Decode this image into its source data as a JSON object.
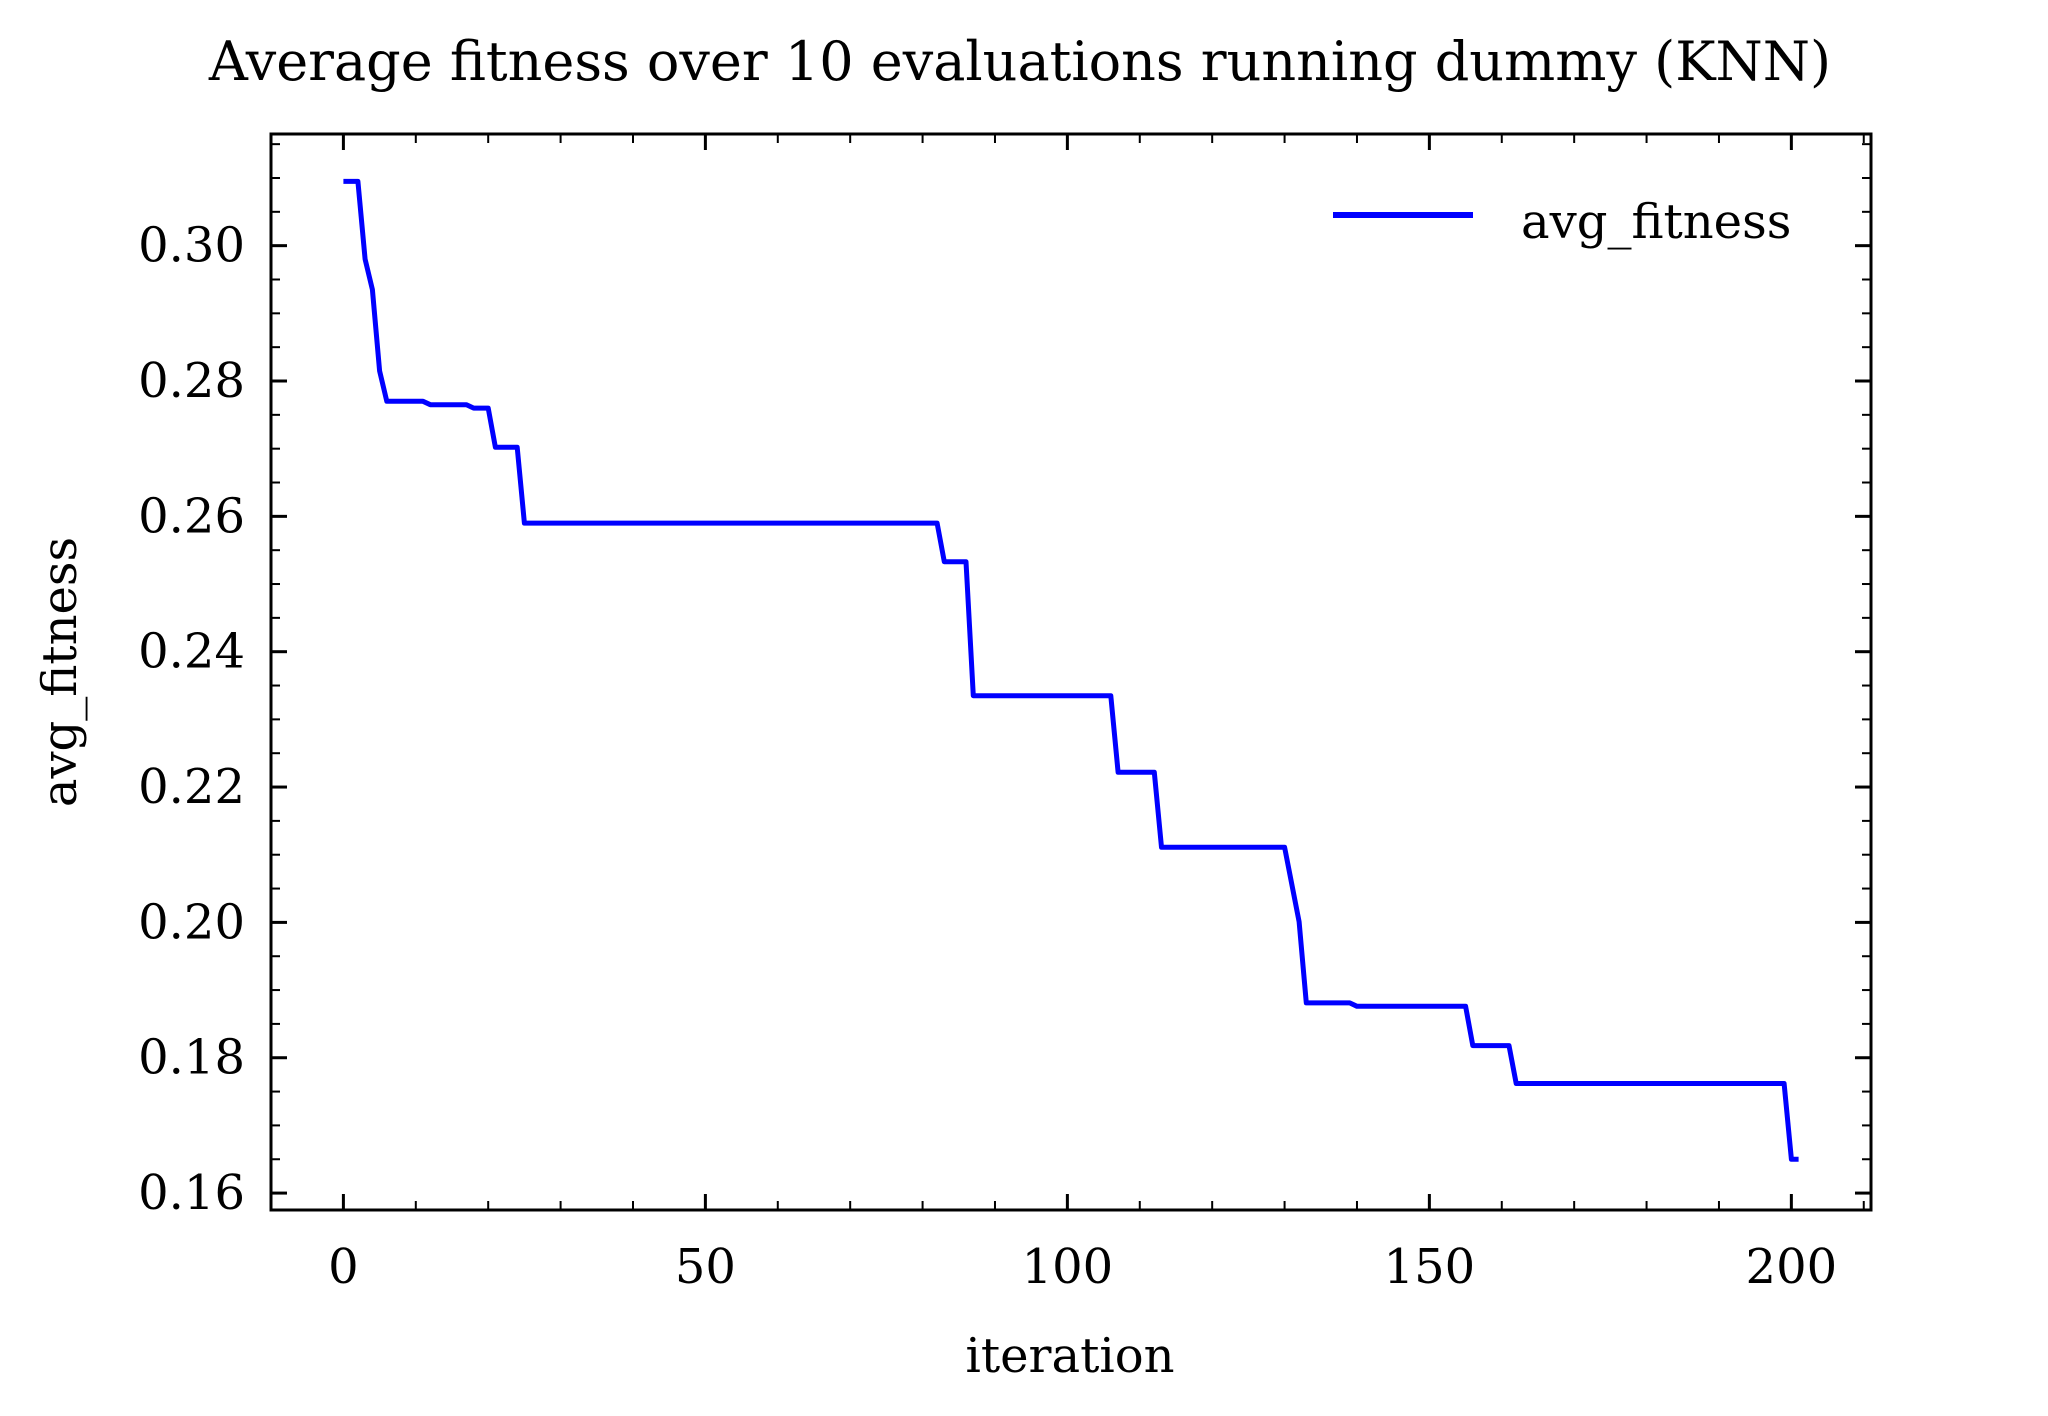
{
  "chart_data": {
    "type": "line",
    "title": "Average fitness over 10 evaluations running dummy (KNN)",
    "xlabel": "iteration",
    "ylabel": "avg_fitness",
    "xlim": [
      -10,
      211
    ],
    "ylim": [
      0.1575,
      0.3165
    ],
    "xticks": [
      0,
      50,
      100,
      150,
      200
    ],
    "xtick_labels": [
      "0",
      "50",
      "100",
      "150",
      "200"
    ],
    "yticks": [
      0.16,
      0.18,
      0.2,
      0.22,
      0.24,
      0.26,
      0.28,
      0.3
    ],
    "ytick_labels": [
      "0.16",
      "0.18",
      "0.20",
      "0.22",
      "0.24",
      "0.26",
      "0.28",
      "0.30"
    ],
    "grid": false,
    "legend_position": "top-right",
    "series": [
      {
        "name": "avg_fitness",
        "color": "#0000ff",
        "x": [
          0,
          2,
          3,
          4,
          5,
          6,
          11,
          12,
          17,
          18,
          20,
          21,
          24,
          25,
          82,
          83,
          86,
          87,
          106,
          107,
          112,
          113,
          130,
          132,
          133,
          139,
          140,
          155,
          156,
          161,
          162,
          199,
          200,
          201
        ],
        "y": [
          0.3095,
          0.3095,
          0.298,
          0.2935,
          0.2815,
          0.277,
          0.277,
          0.2765,
          0.2765,
          0.276,
          0.276,
          0.2702,
          0.2702,
          0.259,
          0.259,
          0.2533,
          0.2533,
          0.2335,
          0.2335,
          0.2222,
          0.2222,
          0.2111,
          0.2111,
          0.2001,
          0.1881,
          0.1881,
          0.1876,
          0.1876,
          0.1818,
          0.1818,
          0.1762,
          0.1762,
          0.165,
          0.165
        ]
      }
    ]
  }
}
